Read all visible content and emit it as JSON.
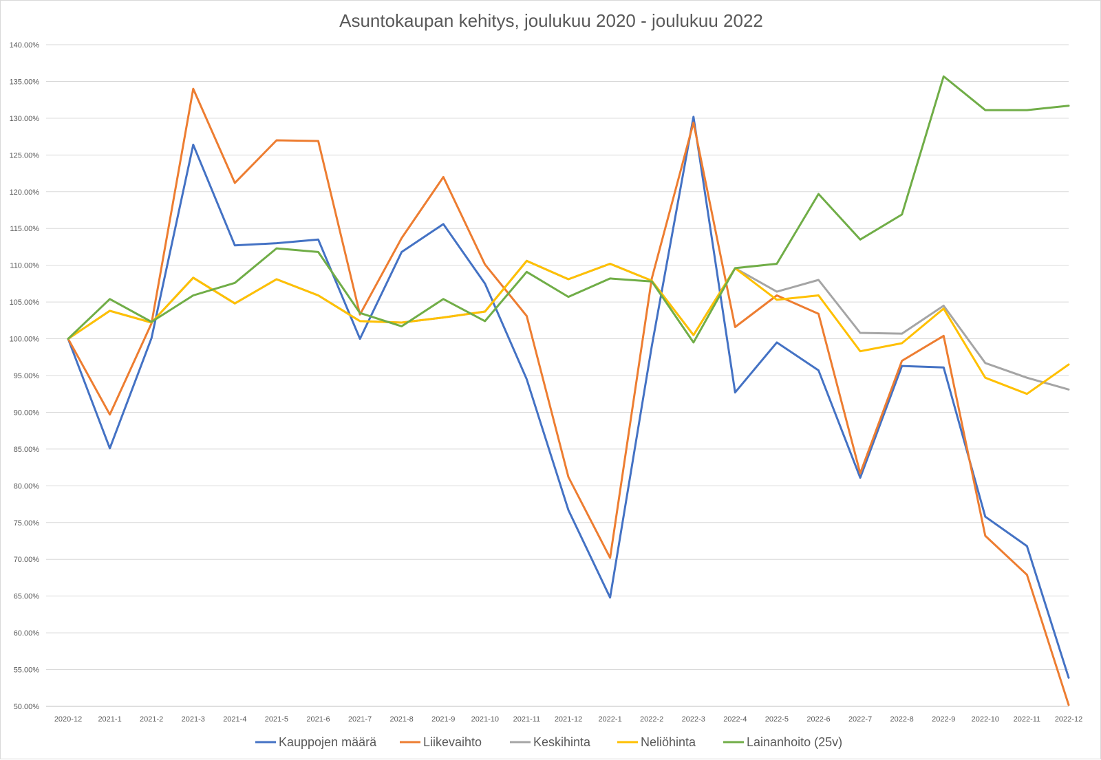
{
  "chart_data": {
    "type": "line",
    "title": "Asuntokaupan kehitys, joulukuu 2020 - joulukuu 2022",
    "xlabel": "",
    "ylabel": "",
    "ylim": [
      50,
      140
    ],
    "y_ticks": [
      "50.00%",
      "55.00%",
      "60.00%",
      "65.00%",
      "70.00%",
      "75.00%",
      "80.00%",
      "85.00%",
      "90.00%",
      "95.00%",
      "100.00%",
      "105.00%",
      "110.00%",
      "115.00%",
      "120.00%",
      "125.00%",
      "130.00%",
      "135.00%",
      "140.00%"
    ],
    "grid": true,
    "legend_position": "bottom",
    "categories": [
      "2020-12",
      "2021-1",
      "2021-2",
      "2021-3",
      "2021-4",
      "2021-5",
      "2021-6",
      "2021-7",
      "2021-8",
      "2021-9",
      "2021-10",
      "2021-11",
      "2021-12",
      "2022-1",
      "2022-2",
      "2022-3",
      "2022-4",
      "2022-5",
      "2022-6",
      "2022-7",
      "2022-8",
      "2022-9",
      "2022-10",
      "2022-11",
      "2022-12"
    ],
    "series": [
      {
        "name": "Kauppojen määrä",
        "color": "#4472C4",
        "values": [
          100.0,
          85.1,
          100.1,
          126.4,
          112.7,
          113.0,
          113.5,
          100.0,
          111.8,
          115.6,
          107.5,
          94.5,
          76.7,
          64.8,
          99.0,
          130.2,
          92.7,
          99.5,
          95.7,
          81.1,
          96.3,
          96.1,
          75.8,
          71.8,
          53.9
        ]
      },
      {
        "name": "Liikevaihto",
        "color": "#ED7D31",
        "values": [
          100.0,
          89.7,
          102.1,
          134.0,
          121.2,
          127.0,
          126.9,
          103.3,
          113.7,
          122.0,
          110.1,
          103.1,
          81.2,
          70.2,
          108.2,
          129.4,
          101.6,
          105.9,
          103.4,
          81.7,
          97.0,
          100.4,
          73.2,
          67.9,
          50.2
        ]
      },
      {
        "name": "Keskihinta",
        "color": "#A5A5A5",
        "values": [
          100.0,
          103.8,
          102.2,
          108.3,
          104.8,
          108.1,
          105.9,
          102.4,
          102.2,
          102.9,
          103.7,
          110.6,
          108.1,
          110.2,
          107.9,
          100.5,
          109.6,
          106.4,
          108.0,
          100.8,
          100.7,
          104.5,
          96.7,
          94.7,
          93.1
        ]
      },
      {
        "name": "Neliöhinta",
        "color": "#FFC000",
        "values": [
          100.0,
          103.8,
          102.2,
          108.3,
          104.8,
          108.1,
          105.9,
          102.4,
          102.2,
          102.9,
          103.7,
          110.6,
          108.1,
          110.2,
          107.9,
          100.5,
          109.6,
          105.3,
          105.9,
          98.3,
          99.4,
          104.1,
          94.7,
          92.5,
          96.5
        ]
      },
      {
        "name": "Lainanhoito (25v)",
        "color": "#70AD47",
        "values": [
          100.0,
          105.4,
          102.3,
          105.9,
          107.6,
          112.3,
          111.8,
          103.5,
          101.7,
          105.4,
          102.4,
          109.1,
          105.7,
          108.2,
          107.8,
          99.5,
          109.6,
          110.2,
          119.7,
          113.5,
          116.9,
          135.7,
          131.1,
          131.1,
          131.7
        ]
      }
    ]
  }
}
